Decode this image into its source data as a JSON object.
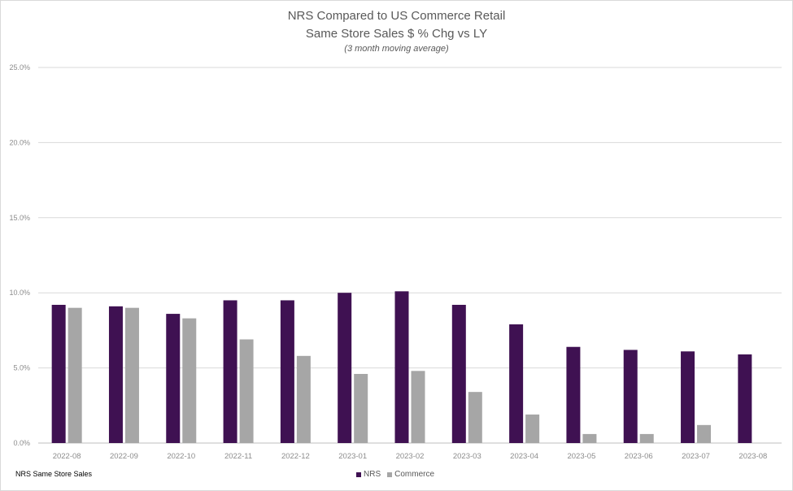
{
  "chart_data": {
    "type": "bar",
    "title": "NRS Compared to US Commerce Retail",
    "subtitle": "Same Store Sales $ % Chg vs LY",
    "note": "(3 month moving average)",
    "categories": [
      "2022-08",
      "2022-09",
      "2022-10",
      "2022-11",
      "2022-12",
      "2023-01",
      "2023-02",
      "2023-03",
      "2023-04",
      "2023-05",
      "2023-06",
      "2023-07",
      "2023-08"
    ],
    "series": [
      {
        "name": "NRS",
        "color": "#3f1152",
        "values": [
          9.2,
          9.1,
          8.6,
          9.5,
          9.5,
          10.0,
          10.1,
          9.2,
          7.9,
          6.4,
          6.2,
          6.1,
          5.9
        ]
      },
      {
        "name": "Commerce",
        "color": "#a6a6a6",
        "values": [
          9.0,
          9.0,
          8.3,
          6.9,
          5.8,
          4.6,
          4.8,
          3.4,
          1.9,
          0.6,
          0.6,
          1.2,
          null
        ]
      }
    ],
    "y_ticks": [
      "0.0%",
      "5.0%",
      "10.0%",
      "15.0%",
      "20.0%",
      "25.0%"
    ],
    "ylim": [
      0,
      25
    ],
    "grid": true,
    "legend_position": "bottom",
    "footnote": "NRS Same Store Sales"
  }
}
